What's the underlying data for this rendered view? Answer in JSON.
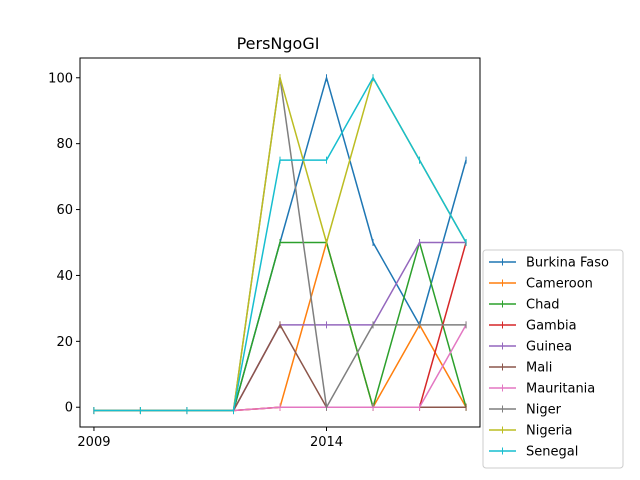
{
  "chart_data": {
    "type": "line",
    "title": "PersNgoGI",
    "xlabel": "",
    "ylabel": "",
    "x": [
      2009,
      2010,
      2011,
      2012,
      2013,
      2014,
      2015,
      2016,
      2017
    ],
    "xticks": [
      2009,
      2014
    ],
    "xtick_labels": [
      "2009",
      "2014"
    ],
    "xlim": [
      2008.7,
      2017.3
    ],
    "yticks": [
      0,
      20,
      40,
      60,
      80,
      100
    ],
    "ytick_labels": [
      "0",
      "20",
      "40",
      "60",
      "80",
      "100"
    ],
    "ylim": [
      -6,
      106
    ],
    "grid": false,
    "legend_position": "outside-right-bottom",
    "series": [
      {
        "name": "Burkina Faso",
        "color": "#1f77b4",
        "values": [
          -1,
          -1,
          -1,
          -1,
          50,
          100,
          50,
          25,
          75
        ]
      },
      {
        "name": "Cameroon",
        "color": "#ff7f0e",
        "values": [
          -1,
          -1,
          -1,
          -1,
          0,
          50,
          0,
          25,
          0
        ]
      },
      {
        "name": "Chad",
        "color": "#2ca02c",
        "values": [
          -1,
          -1,
          -1,
          -1,
          50,
          50,
          0,
          50,
          0
        ]
      },
      {
        "name": "Gambia",
        "color": "#d62728",
        "values": [
          -1,
          -1,
          -1,
          -1,
          0,
          0,
          0,
          0,
          50
        ]
      },
      {
        "name": "Guinea",
        "color": "#9467bd",
        "values": [
          -1,
          -1,
          -1,
          -1,
          25,
          25,
          25,
          50,
          50
        ]
      },
      {
        "name": "Mali",
        "color": "#8c564b",
        "values": [
          -1,
          -1,
          -1,
          -1,
          25,
          0,
          0,
          0,
          0
        ]
      },
      {
        "name": "Mauritania",
        "color": "#e377c2",
        "values": [
          -1,
          -1,
          -1,
          -1,
          0,
          0,
          0,
          0,
          25
        ]
      },
      {
        "name": "Niger",
        "color": "#7f7f7f",
        "values": [
          -1,
          -1,
          -1,
          -1,
          100,
          0,
          25,
          25,
          25
        ]
      },
      {
        "name": "Nigeria",
        "color": "#bcbd22",
        "values": [
          -1,
          -1,
          -1,
          -1,
          100,
          50,
          100,
          75,
          50
        ]
      },
      {
        "name": "Senegal",
        "color": "#17becf",
        "values": [
          -1,
          -1,
          -1,
          -1,
          75,
          75,
          100,
          75,
          50
        ]
      }
    ]
  }
}
